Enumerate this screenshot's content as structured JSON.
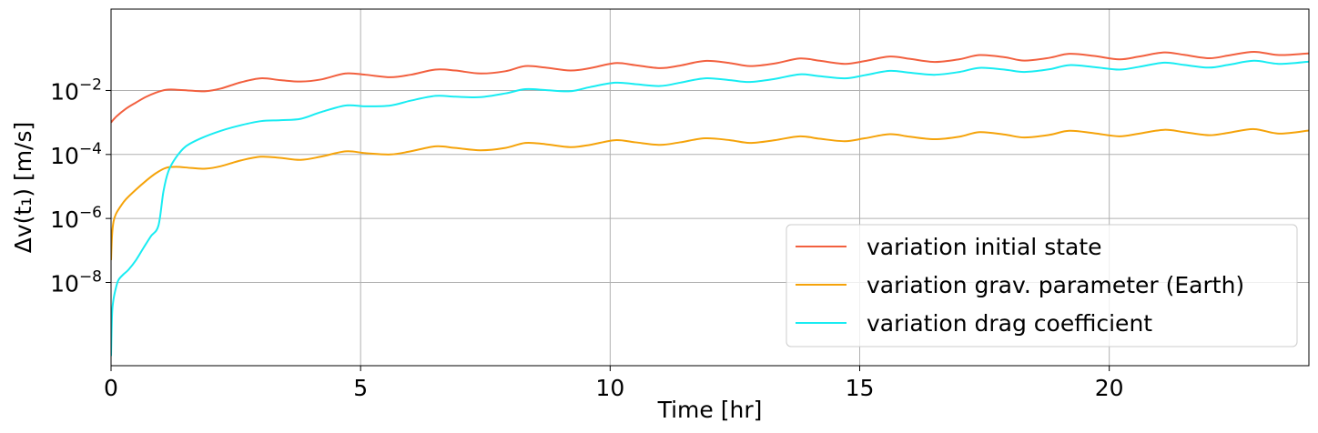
{
  "chart_data": {
    "type": "line",
    "xlabel": "Time [hr]",
    "ylabel": "Δv(t₁) [m/s]",
    "xlim": [
      0,
      24
    ],
    "ylim": [
      2.5e-11,
      3.5
    ],
    "yscale": "log",
    "grid": true,
    "legend_position": "lower right",
    "x_ticks": [
      0,
      5,
      10,
      15,
      20
    ],
    "x_tick_labels": [
      "0",
      "5",
      "10",
      "15",
      "20"
    ],
    "y_ticks": [
      1e-08,
      1e-06,
      0.0001,
      0.01
    ],
    "y_tick_labels": [
      {
        "base": "10",
        "exp": "−8"
      },
      {
        "base": "10",
        "exp": "−6"
      },
      {
        "base": "10",
        "exp": "−4"
      },
      {
        "base": "10",
        "exp": "−2"
      }
    ],
    "series": [
      {
        "name": "variation initial state",
        "color": "#f2603f",
        "x": [
          0,
          0.1,
          0.3,
          0.5,
          0.7,
          0.9,
          1.1,
          1.3,
          1.6,
          1.9,
          2.2,
          2.6,
          3.0,
          3.4,
          3.8,
          4.2,
          4.7,
          5.1,
          5.6,
          6.0,
          6.5,
          6.9,
          7.4,
          7.9,
          8.3,
          8.7,
          9.2,
          9.6,
          10.1,
          10.5,
          11.0,
          11.4,
          11.9,
          12.4,
          12.8,
          13.3,
          13.8,
          14.2,
          14.7,
          15.1,
          15.6,
          16.0,
          16.5,
          17.0,
          17.4,
          17.9,
          18.3,
          18.8,
          19.2,
          19.7,
          20.2,
          20.6,
          21.1,
          21.5,
          22.0,
          22.4,
          22.9,
          23.4,
          24.0
        ],
        "y": [
          0.001,
          0.0015,
          0.0027,
          0.0042,
          0.0063,
          0.0086,
          0.0105,
          0.0106,
          0.0099,
          0.0095,
          0.0115,
          0.018,
          0.024,
          0.021,
          0.019,
          0.022,
          0.034,
          0.031,
          0.026,
          0.031,
          0.045,
          0.042,
          0.034,
          0.04,
          0.058,
          0.052,
          0.042,
          0.05,
          0.072,
          0.062,
          0.05,
          0.06,
          0.084,
          0.072,
          0.058,
          0.07,
          0.1,
          0.085,
          0.068,
          0.083,
          0.115,
          0.098,
          0.078,
          0.095,
          0.128,
          0.11,
          0.086,
          0.105,
          0.14,
          0.12,
          0.094,
          0.115,
          0.155,
          0.13,
          0.102,
          0.125,
          0.162,
          0.128,
          0.145
        ]
      },
      {
        "name": "variation grav. parameter (Earth)",
        "color": "#f5a30a",
        "x": [
          0,
          0.02,
          0.05,
          0.1,
          0.2,
          0.3,
          0.5,
          0.7,
          0.9,
          1.1,
          1.3,
          1.6,
          1.9,
          2.2,
          2.6,
          3.0,
          3.4,
          3.8,
          4.2,
          4.7,
          5.1,
          5.6,
          6.0,
          6.5,
          6.9,
          7.4,
          7.9,
          8.3,
          8.7,
          9.2,
          9.6,
          10.1,
          10.5,
          11.0,
          11.4,
          11.9,
          12.4,
          12.8,
          13.3,
          13.8,
          14.2,
          14.7,
          15.1,
          15.6,
          16.0,
          16.5,
          17.0,
          17.4,
          17.9,
          18.3,
          18.8,
          19.2,
          19.7,
          20.2,
          20.6,
          21.1,
          21.5,
          22.0,
          22.4,
          22.9,
          23.4,
          24.0
        ],
        "y": [
          5e-08,
          3e-07,
          8e-07,
          1.4e-06,
          2.5e-06,
          4e-06,
          8e-06,
          1.5e-05,
          2.6e-05,
          3.8e-05,
          4.1e-05,
          3.8e-05,
          3.6e-05,
          4.3e-05,
          6.5e-05,
          8.5e-05,
          7.8e-05,
          6.8e-05,
          8.5e-05,
          0.000125,
          0.00011,
          0.0001,
          0.000125,
          0.00018,
          0.00016,
          0.000135,
          0.00016,
          0.00023,
          0.00021,
          0.00017,
          0.0002,
          0.00028,
          0.00024,
          0.0002,
          0.00024,
          0.00032,
          0.00028,
          0.00023,
          0.00028,
          0.00037,
          0.00031,
          0.00026,
          0.00032,
          0.00043,
          0.00036,
          0.0003,
          0.00036,
          0.0005,
          0.00042,
          0.00034,
          0.00041,
          0.00055,
          0.00046,
          0.00037,
          0.00045,
          0.00059,
          0.0005,
          0.0004,
          0.00048,
          0.00062,
          0.00045,
          0.00056
        ]
      },
      {
        "name": "variation drag coefficient",
        "color": "#18ecf2",
        "x": [
          0,
          0.02,
          0.05,
          0.1,
          0.15,
          0.25,
          0.35,
          0.5,
          0.65,
          0.8,
          0.95,
          1.05,
          1.15,
          1.3,
          1.5,
          1.8,
          2.2,
          2.6,
          3.0,
          3.4,
          3.8,
          4.2,
          4.7,
          5.1,
          5.6,
          6.0,
          6.5,
          6.9,
          7.4,
          7.9,
          8.3,
          8.7,
          9.2,
          9.6,
          10.1,
          10.5,
          11.0,
          11.4,
          11.9,
          12.4,
          12.8,
          13.3,
          13.8,
          14.2,
          14.7,
          15.1,
          15.6,
          16.0,
          16.5,
          17.0,
          17.4,
          17.9,
          18.3,
          18.8,
          19.2,
          19.7,
          20.2,
          20.6,
          21.1,
          21.5,
          22.0,
          22.4,
          22.9,
          23.4,
          24.0
        ],
        "y": [
          5e-11,
          1e-09,
          3e-09,
          7e-09,
          1.2e-08,
          1.8e-08,
          2.5e-08,
          5e-08,
          1.2e-07,
          2.8e-07,
          6e-07,
          7e-06,
          3e-05,
          8e-05,
          0.00018,
          0.00032,
          0.00055,
          0.00082,
          0.0011,
          0.00118,
          0.0013,
          0.0021,
          0.0034,
          0.0032,
          0.0034,
          0.0048,
          0.0068,
          0.0064,
          0.0062,
          0.0081,
          0.011,
          0.0103,
          0.0095,
          0.0128,
          0.0175,
          0.0158,
          0.0138,
          0.0175,
          0.024,
          0.021,
          0.0185,
          0.023,
          0.032,
          0.028,
          0.024,
          0.03,
          0.041,
          0.036,
          0.031,
          0.038,
          0.051,
          0.045,
          0.038,
          0.046,
          0.062,
          0.054,
          0.045,
          0.055,
          0.074,
          0.063,
          0.052,
          0.064,
          0.085,
          0.068,
          0.08
        ]
      }
    ]
  }
}
